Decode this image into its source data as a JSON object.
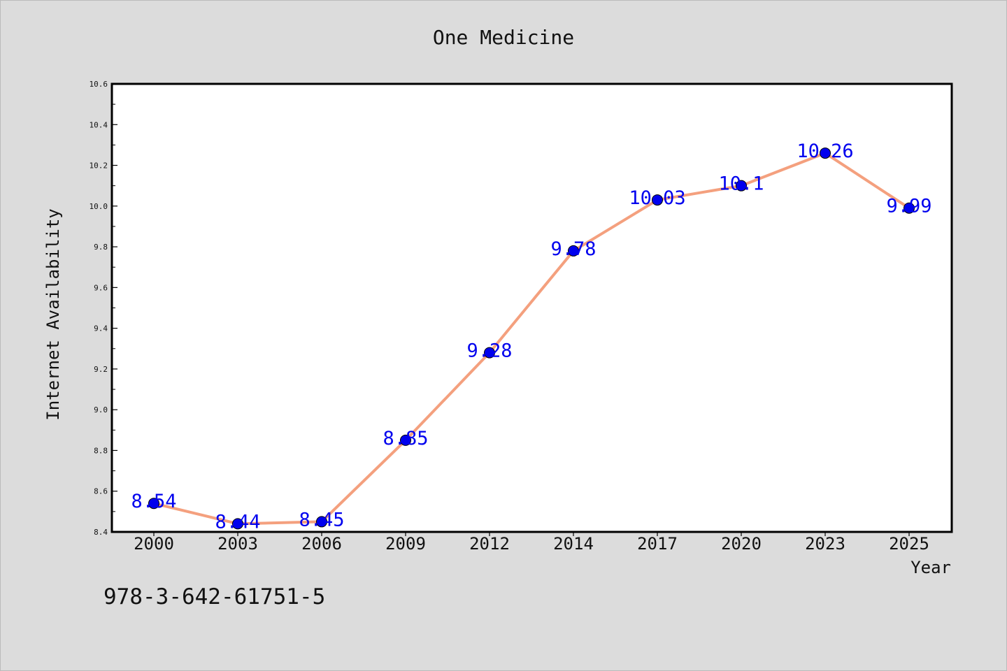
{
  "chart_data": {
    "type": "line",
    "title": "One Medicine",
    "xlabel": "Year",
    "ylabel": "Internet Availability",
    "x": [
      "2000",
      "2003",
      "2006",
      "2009",
      "2012",
      "2014",
      "2017",
      "2020",
      "2023",
      "2025"
    ],
    "series": [
      {
        "values": [
          8.54,
          8.44,
          8.45,
          8.85,
          9.28,
          9.78,
          10.03,
          10.1,
          10.26,
          9.99
        ],
        "labels": [
          "8.54",
          "8.44",
          "8.45",
          "8.85",
          "9.28",
          "9.78",
          "10.03",
          "10.1",
          "10.26",
          "9.99"
        ]
      }
    ],
    "ylim": [
      8.4,
      10.6
    ],
    "yticks": [
      "8.4",
      "8.6",
      "8.8",
      "9.0",
      "9.2",
      "9.4",
      "9.6",
      "9.8",
      "10.0",
      "10.2",
      "10.4",
      "10.6"
    ],
    "grid": false,
    "line_color": "#f4a07e",
    "marker_color": "#0000ee",
    "label_color": "#0000ee"
  },
  "annotation": "978-3-642-61751-5"
}
